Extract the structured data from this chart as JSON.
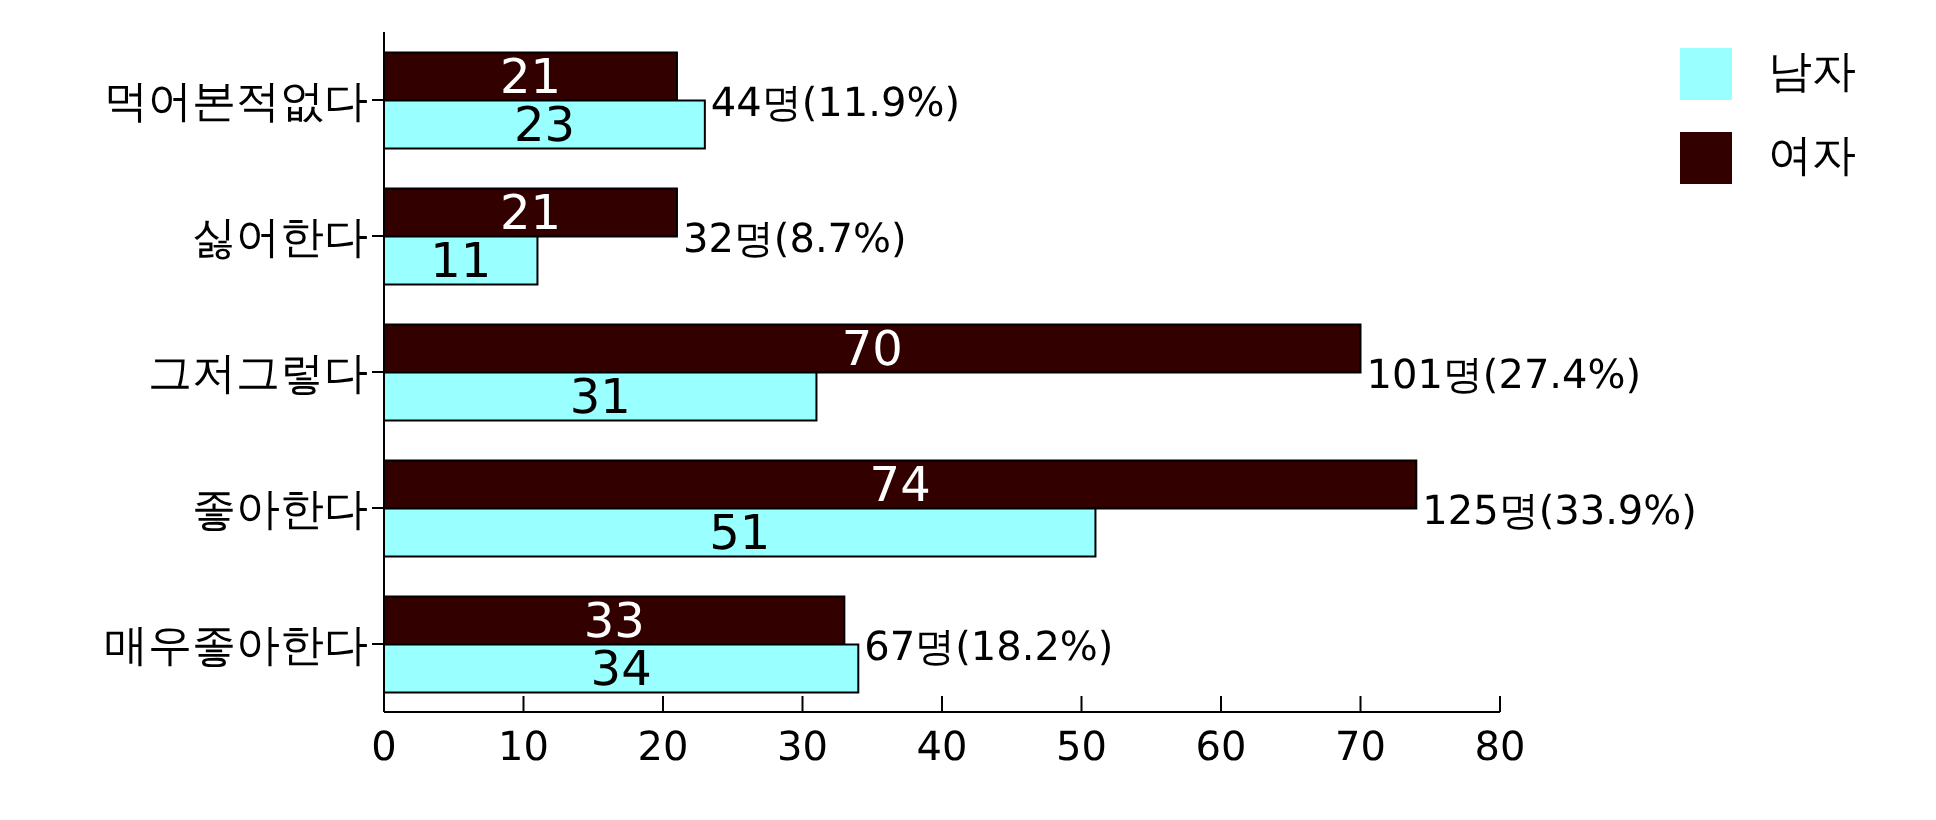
{
  "chart_data": {
    "type": "bar",
    "orientation": "horizontal",
    "categories": [
      "먹어본적없다",
      "싫어한다",
      "그저그렇다",
      "좋아한다",
      "매우좋아한다"
    ],
    "series": [
      {
        "name": "여자",
        "color": "#330000",
        "values": [
          21,
          21,
          70,
          74,
          33
        ]
      },
      {
        "name": "남자",
        "color": "#99ffff",
        "values": [
          23,
          11,
          31,
          51,
          34
        ]
      }
    ],
    "xlim": [
      0,
      80
    ],
    "xticks": [
      0,
      10,
      20,
      30,
      40,
      50,
      60,
      70,
      80
    ],
    "legend": "top right",
    "data_labels": true,
    "annotations": [
      {
        "text": "44명(11.9%)",
        "x": 23,
        "y": "먹어본적없다"
      },
      {
        "text": "32명(8.7%)",
        "x": 21,
        "y": "싫어한다"
      },
      {
        "text": "101명(27.4%)",
        "x": 70,
        "y": "그저그렇다"
      },
      {
        "text": "125명(33.9%)",
        "x": 74,
        "y": "좋아한다"
      },
      {
        "text": "67명(18.2%)",
        "x": 34,
        "y": "매우좋아한다"
      }
    ]
  }
}
